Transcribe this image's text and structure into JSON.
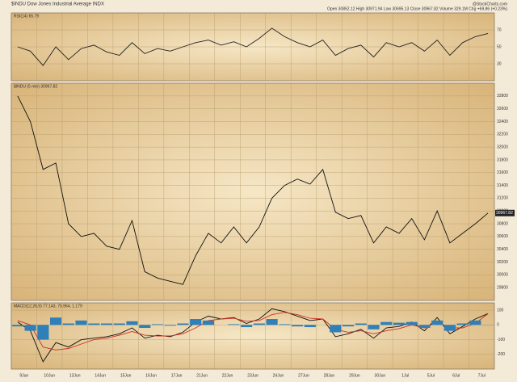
{
  "header": {
    "title": "$INDU Dow Jones Industrial Average INDX",
    "source": "@StockCharts.com",
    "quote": "Open 30852.12 High 30971.94 Low 30695.13 Close 30967.82 Volume 329.1M Chg +69.86 (+0.23%)"
  },
  "dates": [
    "9Jun",
    "10Jun",
    "13Jun",
    "14Jun",
    "15Jun",
    "16Jun",
    "17Jun",
    "21Jun",
    "22Jun",
    "23Jun",
    "24Jun",
    "27Jun",
    "28Jun",
    "29Jun",
    "30Jun",
    "1Jul",
    "5Jul",
    "6Jul",
    "7Jul"
  ],
  "chart_data": [
    {
      "type": "line",
      "title": "RSI(14) 65.79",
      "ylim": [
        10,
        90
      ],
      "yticks": [
        30,
        50,
        70
      ],
      "series": [
        {
          "name": "RSI(14)",
          "color": "#222222",
          "values": [
            50,
            45,
            28,
            50,
            35,
            48,
            52,
            44,
            40,
            55,
            42,
            48,
            45,
            50,
            55,
            58,
            52,
            56,
            50,
            60,
            72,
            62,
            55,
            50,
            58,
            40,
            48,
            52,
            38,
            55,
            50,
            55,
            45,
            58,
            40,
            55,
            62,
            65.79
          ]
        }
      ]
    },
    {
      "type": "line",
      "title": "$INDU (5 min) 30967.82",
      "ylim": [
        29600,
        33000
      ],
      "yticks": [
        29800,
        30000,
        30200,
        30400,
        30600,
        30800,
        31000,
        31200,
        31400,
        31600,
        31800,
        32000,
        32200,
        32400,
        32600,
        32800
      ],
      "series": [
        {
          "name": "$INDU",
          "color": "#111111",
          "values": [
            32800,
            32400,
            31650,
            31750,
            30800,
            30600,
            30650,
            30450,
            30400,
            30850,
            30050,
            29950,
            29900,
            29850,
            30300,
            30650,
            30500,
            30750,
            30500,
            30750,
            31200,
            31400,
            31500,
            31420,
            31650,
            30980,
            30880,
            30930,
            30500,
            30750,
            30650,
            30880,
            30550,
            31000,
            30500,
            30650,
            30800,
            30967.82
          ]
        }
      ]
    },
    {
      "type": "macd",
      "title": "MACD(12,26,9) 77.143, 75.964, 1.179",
      "ylim": [
        -300,
        150
      ],
      "yticks": [
        100,
        0,
        -100,
        -200
      ],
      "series": [
        {
          "name": "MACD",
          "color": "#111111",
          "values": [
            20,
            -40,
            -250,
            -120,
            -150,
            -100,
            -90,
            -80,
            -60,
            -20,
            -90,
            -70,
            -80,
            -50,
            20,
            60,
            40,
            50,
            10,
            40,
            110,
            90,
            60,
            30,
            40,
            -80,
            -60,
            -30,
            -90,
            -20,
            -10,
            20,
            -40,
            50,
            -60,
            -10,
            40,
            77.143
          ]
        },
        {
          "name": "Signal",
          "color": "#d03020",
          "values": [
            30,
            0,
            -150,
            -170,
            -160,
            -130,
            -100,
            -90,
            -70,
            -45,
            -70,
            -75,
            -75,
            -60,
            -20,
            30,
            40,
            45,
            25,
            30,
            70,
            85,
            70,
            45,
            40,
            -30,
            -50,
            -40,
            -60,
            -40,
            -25,
            0,
            -20,
            20,
            -20,
            -20,
            10,
            75.964
          ]
        },
        {
          "name": "Histogram",
          "color": "#2f7fb8",
          "values": [
            -10,
            -40,
            -100,
            50,
            10,
            30,
            10,
            10,
            10,
            25,
            -20,
            5,
            -5,
            10,
            40,
            30,
            0,
            5,
            -15,
            10,
            40,
            5,
            -10,
            -15,
            0,
            -50,
            -10,
            10,
            -30,
            20,
            15,
            20,
            -20,
            30,
            -40,
            10,
            30,
            1.179
          ]
        }
      ]
    }
  ]
}
